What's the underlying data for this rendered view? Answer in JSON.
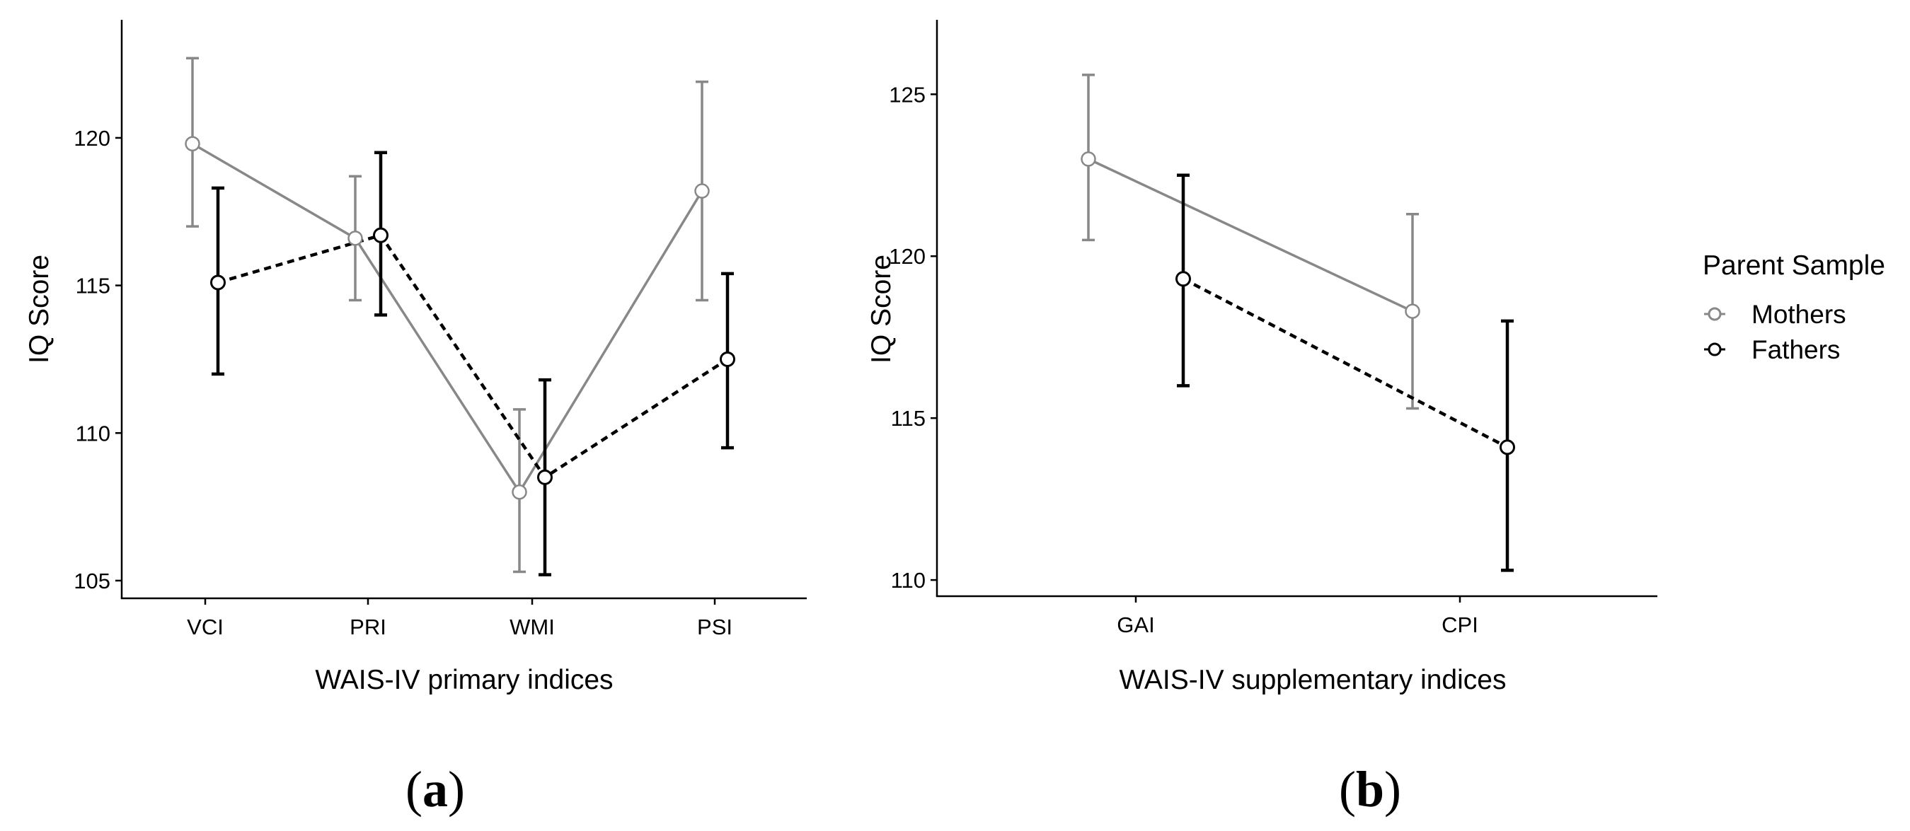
{
  "legend": {
    "title": "Parent Sample",
    "entries": [
      {
        "label": "Mothers",
        "color": "#888888",
        "dash": "solid"
      },
      {
        "label": "Fathers",
        "color": "#000000",
        "dash": "dashed"
      }
    ]
  },
  "panel_labels": {
    "a": {
      "open": "(",
      "letter": "a",
      "close": ")"
    },
    "b": {
      "open": "(",
      "letter": "b",
      "close": ")"
    }
  },
  "chart_data": [
    {
      "type": "line",
      "title": "",
      "xlabel": "WAIS-IV primary indices",
      "ylabel": "IQ Score",
      "categories": [
        "VCI",
        "PRI",
        "WMI",
        "PSI"
      ],
      "ylim": [
        104.4,
        124.0
      ],
      "yticks": [
        105,
        110,
        115,
        120
      ],
      "series": [
        {
          "name": "Mothers",
          "color": "#888888",
          "dash": "solid",
          "values": [
            119.8,
            116.6,
            108.0,
            118.2
          ],
          "lower": [
            117.0,
            114.5,
            105.3,
            114.5
          ],
          "upper": [
            122.7,
            118.7,
            110.8,
            121.9
          ]
        },
        {
          "name": "Fathers",
          "color": "#000000",
          "dash": "dashed",
          "values": [
            115.1,
            116.7,
            108.5,
            112.5
          ],
          "lower": [
            112.0,
            114.0,
            105.2,
            109.5
          ],
          "upper": [
            118.3,
            119.5,
            111.8,
            115.4
          ]
        }
      ]
    },
    {
      "type": "line",
      "title": "",
      "xlabel": "WAIS-IV supplementary indices",
      "ylabel": "IQ Score",
      "categories": [
        "GAI",
        "CPI"
      ],
      "ylim": [
        109.5,
        127.3
      ],
      "yticks": [
        110,
        115,
        120,
        125
      ],
      "series": [
        {
          "name": "Mothers",
          "color": "#888888",
          "dash": "solid",
          "values": [
            123.0,
            118.3
          ],
          "lower": [
            120.5,
            115.3
          ],
          "upper": [
            125.6,
            121.3
          ]
        },
        {
          "name": "Fathers",
          "color": "#000000",
          "dash": "dashed",
          "values": [
            119.3,
            114.1
          ],
          "lower": [
            116.0,
            110.3
          ],
          "upper": [
            122.5,
            118.0
          ]
        }
      ]
    }
  ]
}
